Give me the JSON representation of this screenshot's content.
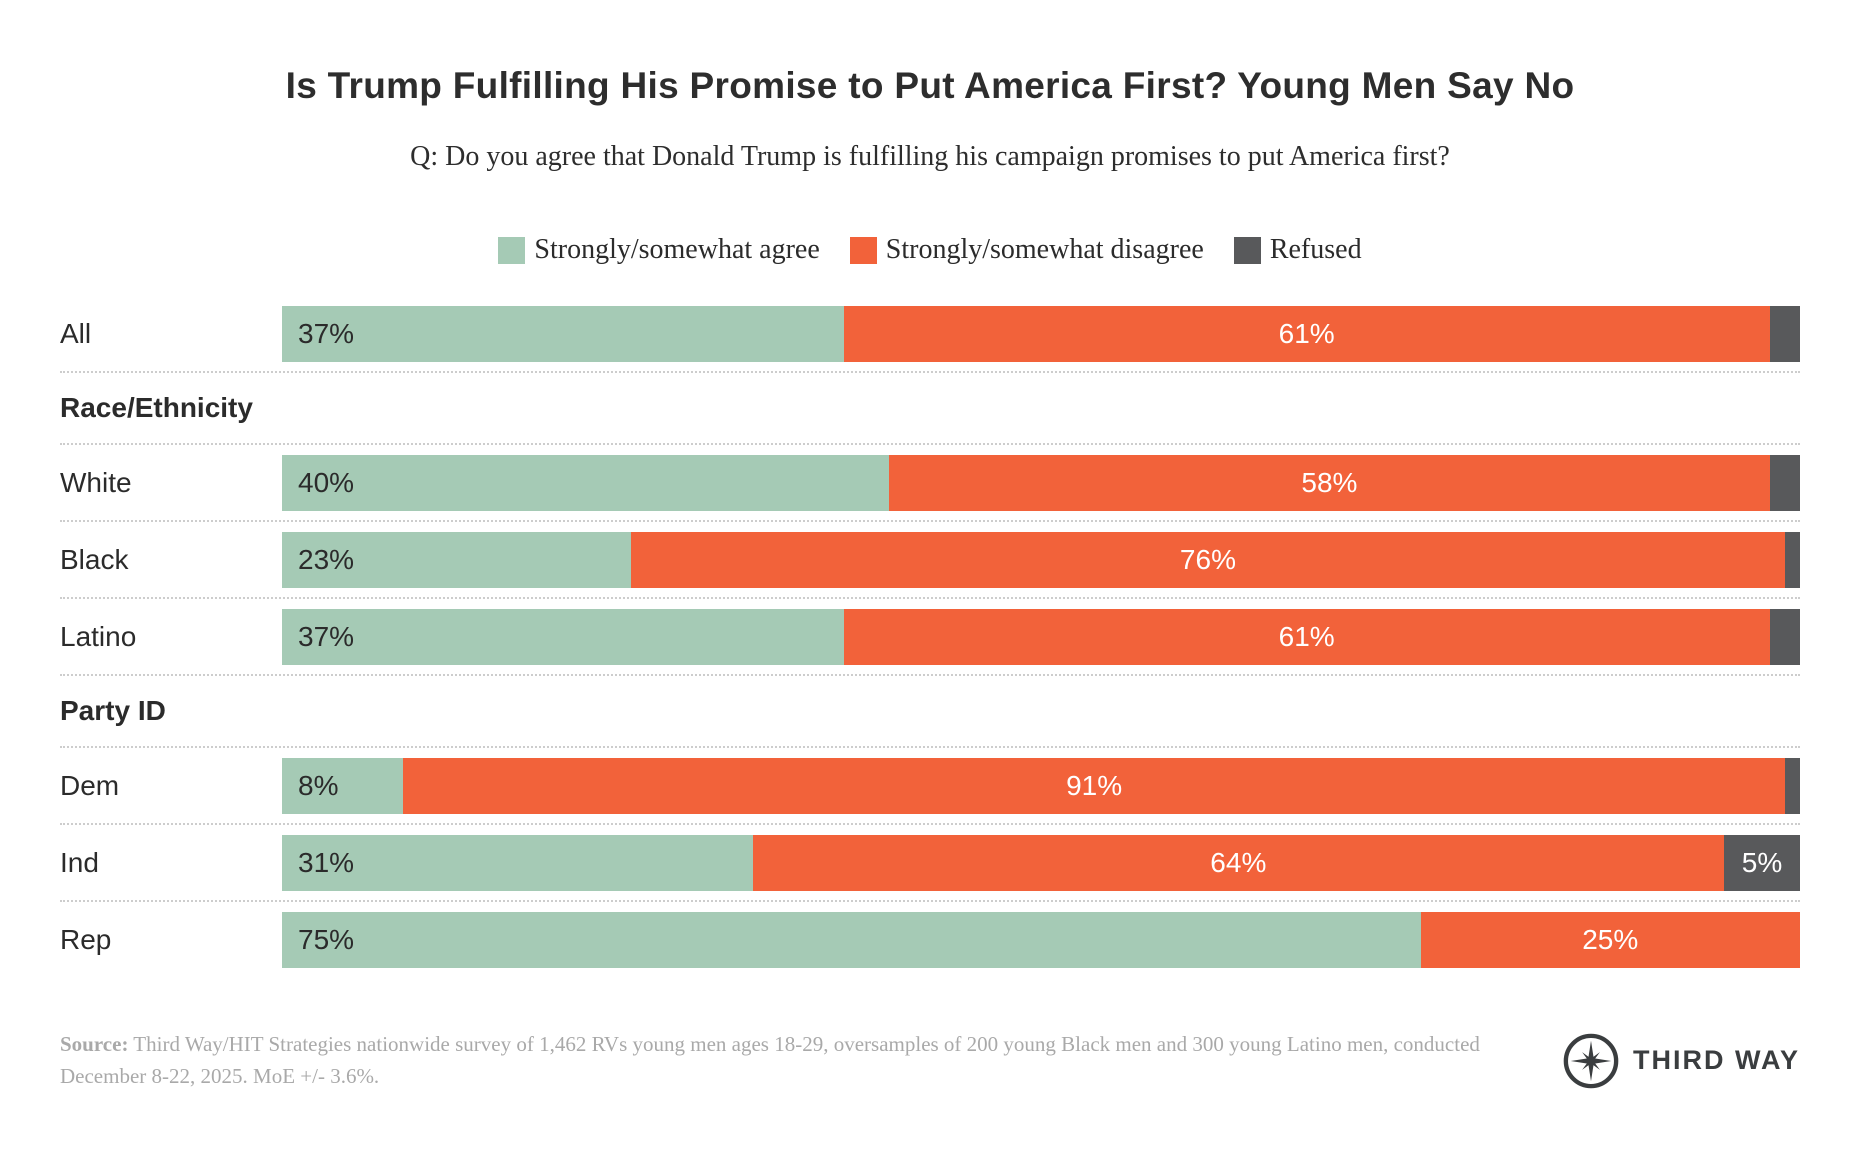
{
  "title": "Is Trump Fulfilling His Promise to Put America First? Young Men Say No",
  "subtitle": "Q: Do you agree that Donald Trump is fulfilling his campaign promises to put America first?",
  "chart_data": {
    "type": "bar",
    "orientation": "horizontal",
    "stacked": true,
    "unit": "%",
    "xlim": [
      0,
      100
    ],
    "axis_shown": false,
    "legend_position": "top",
    "categories": [
      "All",
      "White",
      "Black",
      "Latino",
      "Dem",
      "Ind",
      "Rep"
    ],
    "series": [
      {
        "name": "Strongly/somewhat agree",
        "color": "#A5CAB5",
        "values": [
          37,
          40,
          23,
          37,
          8,
          31,
          75
        ]
      },
      {
        "name": "Strongly/somewhat disagree",
        "color": "#F2623A",
        "values": [
          61,
          58,
          76,
          61,
          91,
          64,
          25
        ]
      },
      {
        "name": "Refused",
        "color": "#58595B",
        "values": [
          2,
          2,
          1,
          2,
          1,
          5,
          0
        ]
      }
    ],
    "sections": [
      {
        "header": "",
        "categories": [
          "All"
        ]
      },
      {
        "header": "Race/Ethnicity",
        "categories": [
          "White",
          "Black",
          "Latino"
        ]
      },
      {
        "header": "Party ID",
        "categories": [
          "Dem",
          "Ind",
          "Rep"
        ]
      }
    ],
    "label_colors": {
      "agree": "#2b2b2b",
      "disagree": "#ffffff",
      "refused": "#ffffff"
    },
    "min_value_for_label": 5
  },
  "footer": {
    "source_label": "Source:",
    "source_text": " Third Way/HIT Strategies nationwide survey of 1,462 RVs young men ages 18-29, oversamples of 200 young Black men and 300 young Latino men, conducted December 8-22, 2025. MoE +/- 3.6%.",
    "logo_text": "THIRD WAY"
  }
}
